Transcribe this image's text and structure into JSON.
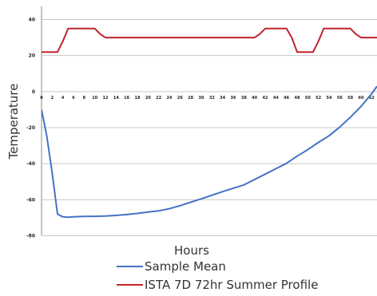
{
  "chart_data": {
    "type": "line",
    "xlabel": "Hours",
    "ylabel": "Temperature",
    "xlim": [
      0,
      63
    ],
    "ylim": [
      -80,
      45
    ],
    "grid": true,
    "legend_position": "bottom",
    "y_ticks": [
      40,
      20,
      0,
      -20,
      -40,
      -60,
      -80
    ],
    "y_tick_labels": [
      "40",
      "20",
      "0",
      "-20",
      "-40",
      "-60",
      "-80"
    ],
    "x_tick_labels": [
      "0",
      "2",
      "4",
      "6",
      "8",
      "10",
      "12",
      "14",
      "16",
      "18",
      "20",
      "22",
      "24",
      "26",
      "28",
      "30",
      "32",
      "34",
      "36",
      "38",
      "40",
      "42",
      "44",
      "46",
      "48",
      "50",
      "52",
      "54",
      "56",
      "58",
      "60",
      "62"
    ],
    "series": [
      {
        "name": "Sample Mean",
        "color": "#4472c4",
        "x": [
          0,
          1,
          2,
          3,
          4,
          5,
          6,
          8,
          10,
          12,
          14,
          16,
          18,
          20,
          22,
          24,
          26,
          28,
          30,
          32,
          34,
          36,
          38,
          40,
          42,
          44,
          46,
          48,
          50,
          52,
          54,
          56,
          58,
          60,
          62,
          63
        ],
        "y": [
          -10,
          -25,
          -45,
          -68,
          -69.5,
          -69.7,
          -69.5,
          -69.3,
          -69.2,
          -69,
          -68.7,
          -68.2,
          -67.6,
          -66.8,
          -66.2,
          -65,
          -63.3,
          -61.4,
          -59.5,
          -57.5,
          -55.5,
          -53.6,
          -51.8,
          -48.8,
          -45.8,
          -42.8,
          -39.8,
          -35.8,
          -32.2,
          -28.2,
          -24.5,
          -19.7,
          -14.2,
          -8.2,
          -1.2,
          3
        ]
      },
      {
        "name": "ISTA 7D 72hr Summer Profile",
        "color": "#c0232b",
        "x": [
          0,
          3,
          4,
          5,
          10,
          11,
          12,
          40,
          41,
          42,
          46,
          47,
          48,
          51,
          52,
          53,
          58,
          59,
          60,
          63
        ],
        "y": [
          22,
          22,
          28,
          35,
          35,
          32,
          30,
          30,
          32,
          35,
          35,
          30,
          22,
          22,
          28,
          35,
          35,
          32,
          30,
          30
        ]
      }
    ]
  }
}
